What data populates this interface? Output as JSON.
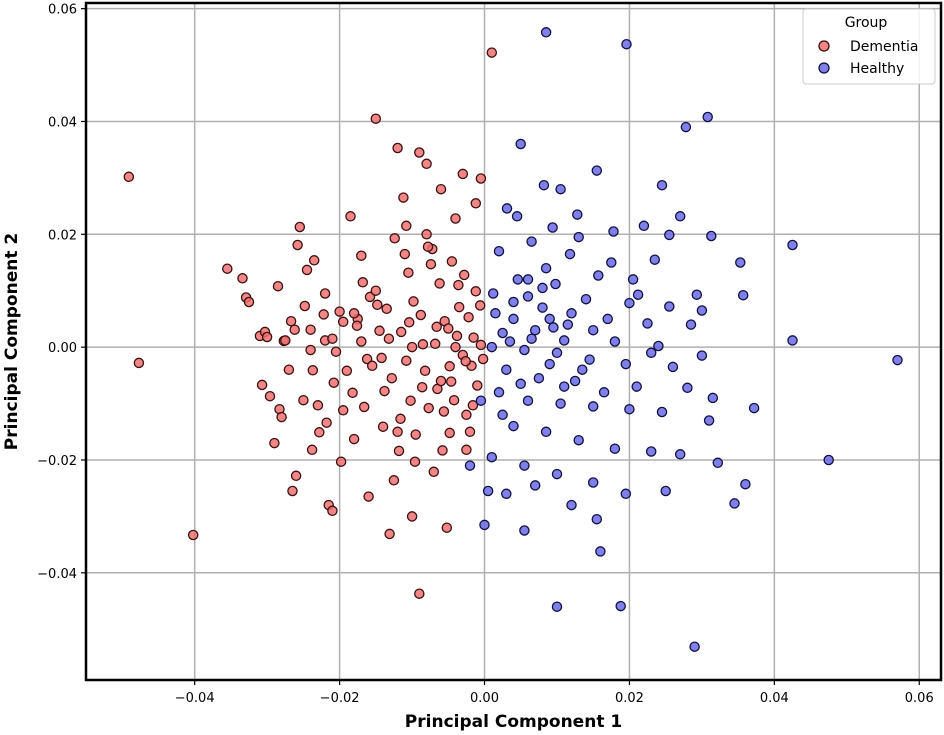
{
  "chart_data": {
    "type": "scatter",
    "title": "",
    "xlabel": "Principal Component 1",
    "ylabel": "Principal Component 2",
    "xlim": [
      -0.055,
      0.063
    ],
    "ylim": [
      -0.059,
      0.061
    ],
    "xticks": [
      -0.04,
      -0.02,
      0.0,
      0.02,
      0.04,
      0.06
    ],
    "yticks": [
      -0.04,
      -0.02,
      0.0,
      0.02,
      0.04,
      0.06
    ],
    "xtick_labels": [
      "−0.04",
      "−0.02",
      "0.00",
      "0.02",
      "0.04",
      "0.06"
    ],
    "ytick_labels": [
      "−0.04",
      "−0.02",
      "0.00",
      "0.02",
      "0.04",
      "0.06"
    ],
    "grid": true,
    "legend": {
      "title": "Group",
      "placement": "top-right"
    },
    "series": [
      {
        "name": "Dementia",
        "color": "#f07070",
        "edge_color": "#3a1010",
        "points": [
          [
            -0.0491,
            0.0302
          ],
          [
            -0.0477,
            -0.0028
          ],
          [
            -0.0402,
            -0.0333
          ],
          [
            -0.0355,
            0.0139
          ],
          [
            -0.0334,
            0.0122
          ],
          [
            -0.0329,
            0.0088
          ],
          [
            -0.0325,
            0.008
          ],
          [
            -0.031,
            0.002
          ],
          [
            -0.0307,
            -0.0067
          ],
          [
            -0.0303,
            0.0027
          ],
          [
            -0.0296,
            -0.0087
          ],
          [
            -0.0285,
            0.0108
          ],
          [
            -0.0283,
            -0.011
          ],
          [
            -0.028,
            -0.0124
          ],
          [
            -0.0277,
            0.0011
          ],
          [
            -0.0275,
            0.0012
          ],
          [
            -0.0267,
            0.0046
          ],
          [
            -0.0262,
            0.0031
          ],
          [
            -0.0258,
            0.0181
          ],
          [
            -0.0255,
            0.0213
          ],
          [
            -0.0248,
            0.0073
          ],
          [
            -0.0245,
            0.0137
          ],
          [
            -0.024,
            0.0031
          ],
          [
            -0.024,
            -0.0005
          ],
          [
            -0.0237,
            -0.0041
          ],
          [
            -0.0235,
            0.0154
          ],
          [
            -0.023,
            -0.0103
          ],
          [
            -0.022,
            0.0012
          ],
          [
            -0.0218,
            -0.0134
          ],
          [
            -0.021,
            0.0015
          ],
          [
            -0.0205,
            -0.0008
          ],
          [
            -0.02,
            0.0063
          ],
          [
            -0.0195,
            -0.0112
          ],
          [
            -0.019,
            -0.0042
          ],
          [
            -0.018,
            -0.0163
          ],
          [
            -0.0175,
            0.005
          ],
          [
            -0.017,
            0.001
          ],
          [
            -0.0168,
            0.0115
          ],
          [
            -0.0162,
            -0.0021
          ],
          [
            -0.0155,
            -0.0033
          ],
          [
            -0.015,
            0.0405
          ],
          [
            -0.0148,
            0.0075
          ],
          [
            -0.014,
            -0.0141
          ],
          [
            -0.0135,
            0.0068
          ],
          [
            -0.0132,
            0.0015
          ],
          [
            -0.0128,
            -0.0055
          ],
          [
            -0.0125,
            -0.0236
          ],
          [
            -0.012,
            0.0353
          ],
          [
            -0.0118,
            -0.0184
          ],
          [
            -0.0115,
            0.0027
          ],
          [
            -0.011,
            0.0165
          ],
          [
            -0.0108,
            -0.0024
          ],
          [
            -0.0105,
            0.0132
          ],
          [
            -0.0102,
            -0.0095
          ],
          [
            -0.0098,
            0.0081
          ],
          [
            -0.0095,
            -0.0155
          ],
          [
            -0.009,
            -0.0437
          ],
          [
            -0.0088,
            0.0057
          ],
          [
            -0.0085,
            0.0005
          ],
          [
            -0.0082,
            -0.0042
          ],
          [
            -0.008,
            0.0325
          ],
          [
            -0.0077,
            -0.0108
          ],
          [
            -0.0072,
            0.0174
          ],
          [
            -0.0068,
            0.0006
          ],
          [
            -0.0065,
            -0.0074
          ],
          [
            -0.0062,
            0.0113
          ],
          [
            -0.0058,
            -0.0183
          ],
          [
            -0.0055,
            0.0046
          ],
          [
            -0.0052,
            -0.032
          ],
          [
            -0.005,
            0.0033
          ],
          [
            -0.0048,
            -0.0034
          ],
          [
            -0.0045,
            0.0152
          ],
          [
            -0.0042,
            -0.0094
          ],
          [
            -0.0038,
            0.002
          ],
          [
            -0.0035,
            0.0071
          ],
          [
            -0.003,
            -0.0014
          ],
          [
            -0.0028,
            0.0128
          ],
          [
            -0.0025,
            -0.012
          ],
          [
            -0.0022,
            0.0053
          ],
          [
            -0.0018,
            -0.0033
          ],
          [
            -0.0015,
            0.0017
          ],
          [
            -0.0012,
            0.0099
          ],
          [
            -0.001,
            -0.0068
          ],
          [
            -0.0005,
            0.0004
          ],
          [
            -0.0002,
            -0.0021
          ],
          [
            -0.022,
            0.0095
          ],
          [
            -0.0215,
            -0.028
          ],
          [
            -0.021,
            -0.029
          ],
          [
            -0.0195,
            0.0045
          ],
          [
            -0.0185,
            0.0232
          ],
          [
            -0.017,
            0.0162
          ],
          [
            -0.016,
            -0.0265
          ],
          [
            -0.0145,
            0.0029
          ],
          [
            -0.0138,
            -0.0078
          ],
          [
            -0.0112,
            0.0265
          ],
          [
            -0.0108,
            0.0215
          ],
          [
            -0.01,
            -0.03
          ],
          [
            -0.009,
            0.0345
          ],
          [
            -0.0078,
            0.0178
          ],
          [
            -0.007,
            -0.0221
          ],
          [
            -0.006,
            0.028
          ],
          [
            -0.0048,
            -0.0152
          ],
          [
            -0.004,
            0.0228
          ],
          [
            -0.003,
            0.0307
          ],
          [
            -0.0025,
            -0.0182
          ],
          [
            -0.0012,
            0.0255
          ],
          [
            -0.0005,
            0.0299
          ],
          [
            0.001,
            0.0522
          ],
          [
            -0.03,
            0.0018
          ],
          [
            -0.029,
            -0.017
          ],
          [
            -0.027,
            -0.004
          ],
          [
            -0.0265,
            -0.0255
          ],
          [
            -0.026,
            -0.0228
          ],
          [
            -0.025,
            -0.0094
          ],
          [
            -0.0238,
            -0.0182
          ],
          [
            -0.0228,
            -0.0151
          ],
          [
            -0.0222,
            0.0058
          ],
          [
            -0.0208,
            -0.0063
          ],
          [
            -0.0198,
            -0.0203
          ],
          [
            -0.0182,
            -0.0081
          ],
          [
            -0.0176,
            0.0038
          ],
          [
            -0.0166,
            -0.0106
          ],
          [
            -0.0158,
            0.0089
          ],
          [
            -0.0142,
            -0.0019
          ],
          [
            -0.0131,
            -0.0331
          ],
          [
            -0.0124,
            0.0193
          ],
          [
            -0.0116,
            -0.0127
          ],
          [
            -0.0104,
            0.0044
          ],
          [
            -0.0096,
            -0.0203
          ],
          [
            -0.0086,
            -0.0071
          ],
          [
            -0.0074,
            0.0147
          ],
          [
            -0.0066,
            0.0036
          ],
          [
            -0.0056,
            -0.0114
          ],
          [
            -0.0046,
            -0.0061
          ],
          [
            -0.0036,
            0.011
          ],
          [
            -0.0026,
            -0.0025
          ],
          [
            -0.0016,
            -0.0103
          ],
          [
            -0.0006,
            0.0074
          ],
          [
            -0.018,
            0.006
          ],
          [
            -0.015,
            0.01
          ],
          [
            -0.012,
            -0.015
          ],
          [
            -0.01,
            0.0
          ],
          [
            -0.008,
            0.02
          ],
          [
            -0.006,
            -0.006
          ],
          [
            -0.004,
            0.0
          ],
          [
            -0.002,
            -0.015
          ]
        ]
      },
      {
        "name": "Healthy",
        "color": "#6a6ae6",
        "edge_color": "#101040",
        "points": [
          [
            0.0085,
            0.0558
          ],
          [
            0.0196,
            0.0537
          ],
          [
            0.0308,
            0.0408
          ],
          [
            0.0278,
            0.039
          ],
          [
            0.005,
            0.036
          ],
          [
            0.0155,
            0.0313
          ],
          [
            0.0245,
            0.0287
          ],
          [
            0.0082,
            0.0287
          ],
          [
            0.0105,
            0.028
          ],
          [
            0.027,
            0.0232
          ],
          [
            0.022,
            0.0215
          ],
          [
            0.0128,
            0.0235
          ],
          [
            0.0031,
            0.0246
          ],
          [
            0.0045,
            0.0232
          ],
          [
            0.0094,
            0.0212
          ],
          [
            0.0255,
            0.0199
          ],
          [
            0.0313,
            0.0197
          ],
          [
            0.0178,
            0.0205
          ],
          [
            0.0425,
            0.0181
          ],
          [
            0.0065,
            0.0187
          ],
          [
            0.002,
            0.017
          ],
          [
            0.0118,
            0.0165
          ],
          [
            0.0235,
            0.0155
          ],
          [
            0.0353,
            0.015
          ],
          [
            0.0085,
            0.014
          ],
          [
            0.0157,
            0.0127
          ],
          [
            0.0046,
            0.012
          ],
          [
            0.0098,
            0.0112
          ],
          [
            0.0212,
            0.0093
          ],
          [
            0.0293,
            0.0093
          ],
          [
            0.0357,
            0.0092
          ],
          [
            0.0012,
            0.0095
          ],
          [
            0.006,
            0.009
          ],
          [
            0.014,
            0.0085
          ],
          [
            0.02,
            0.0078
          ],
          [
            0.0255,
            0.0072
          ],
          [
            0.03,
            0.0065
          ],
          [
            0.008,
            0.007
          ],
          [
            0.012,
            0.006
          ],
          [
            0.017,
            0.005
          ],
          [
            0.0225,
            0.0042
          ],
          [
            0.004,
            0.005
          ],
          [
            0.0095,
            0.0035
          ],
          [
            0.015,
            0.003
          ],
          [
            0.0425,
            0.0012
          ],
          [
            0.0025,
            0.0025
          ],
          [
            0.0065,
            0.0015
          ],
          [
            0.011,
            0.0012
          ],
          [
            0.018,
            0.001
          ],
          [
            0.024,
            0.0002
          ],
          [
            0.057,
            -0.0023
          ],
          [
            0.001,
            0.0
          ],
          [
            0.0055,
            -0.0005
          ],
          [
            0.01,
            -0.001
          ],
          [
            0.0145,
            -0.0022
          ],
          [
            0.0195,
            -0.003
          ],
          [
            0.026,
            -0.0035
          ],
          [
            0.03,
            -0.0015
          ],
          [
            0.003,
            -0.004
          ],
          [
            0.0075,
            -0.0055
          ],
          [
            0.0125,
            -0.006
          ],
          [
            0.0165,
            -0.008
          ],
          [
            0.021,
            -0.007
          ],
          [
            0.028,
            -0.0072
          ],
          [
            0.002,
            -0.008
          ],
          [
            0.006,
            -0.0095
          ],
          [
            0.0105,
            -0.01
          ],
          [
            0.015,
            -0.0105
          ],
          [
            0.02,
            -0.011
          ],
          [
            0.0245,
            -0.0115
          ],
          [
            0.031,
            -0.013
          ],
          [
            0.0372,
            -0.0108
          ],
          [
            -0.0005,
            -0.0095
          ],
          [
            0.004,
            -0.014
          ],
          [
            0.0085,
            -0.015
          ],
          [
            0.013,
            -0.0165
          ],
          [
            0.018,
            -0.018
          ],
          [
            0.023,
            -0.0185
          ],
          [
            0.0322,
            -0.0205
          ],
          [
            0.0475,
            -0.02
          ],
          [
            0.001,
            -0.0195
          ],
          [
            0.0055,
            -0.021
          ],
          [
            0.01,
            -0.0225
          ],
          [
            0.015,
            -0.024
          ],
          [
            0.0195,
            -0.026
          ],
          [
            0.025,
            -0.0255
          ],
          [
            0.036,
            -0.0243
          ],
          [
            0.0345,
            -0.0277
          ],
          [
            -0.002,
            -0.021
          ],
          [
            0.003,
            -0.026
          ],
          [
            0.007,
            -0.0245
          ],
          [
            0.012,
            -0.028
          ],
          [
            0.0155,
            -0.0305
          ],
          [
            0.0,
            -0.0315
          ],
          [
            0.0055,
            -0.0325
          ],
          [
            0.016,
            -0.0362
          ],
          [
            0.01,
            -0.046
          ],
          [
            0.0188,
            -0.0459
          ],
          [
            0.029,
            -0.0531
          ],
          [
            0.004,
            0.008
          ],
          [
            0.007,
            0.003
          ],
          [
            0.009,
            -0.003
          ],
          [
            0.0115,
            0.004
          ],
          [
            0.0135,
            -0.004
          ],
          [
            0.0035,
            0.001
          ],
          [
            0.005,
            -0.0065
          ],
          [
            0.008,
            0.0105
          ],
          [
            0.011,
            -0.007
          ],
          [
            0.006,
            0.012
          ],
          [
            0.0015,
            0.006
          ],
          [
            0.0025,
            -0.012
          ],
          [
            0.009,
            0.005
          ],
          [
            0.0175,
            0.015
          ],
          [
            0.0205,
            0.012
          ],
          [
            0.023,
            -0.001
          ],
          [
            0.027,
            -0.019
          ],
          [
            0.0285,
            0.004
          ],
          [
            0.0315,
            -0.009
          ],
          [
            0.0005,
            -0.0255
          ],
          [
            0.013,
            0.0195
          ]
        ]
      }
    ]
  }
}
